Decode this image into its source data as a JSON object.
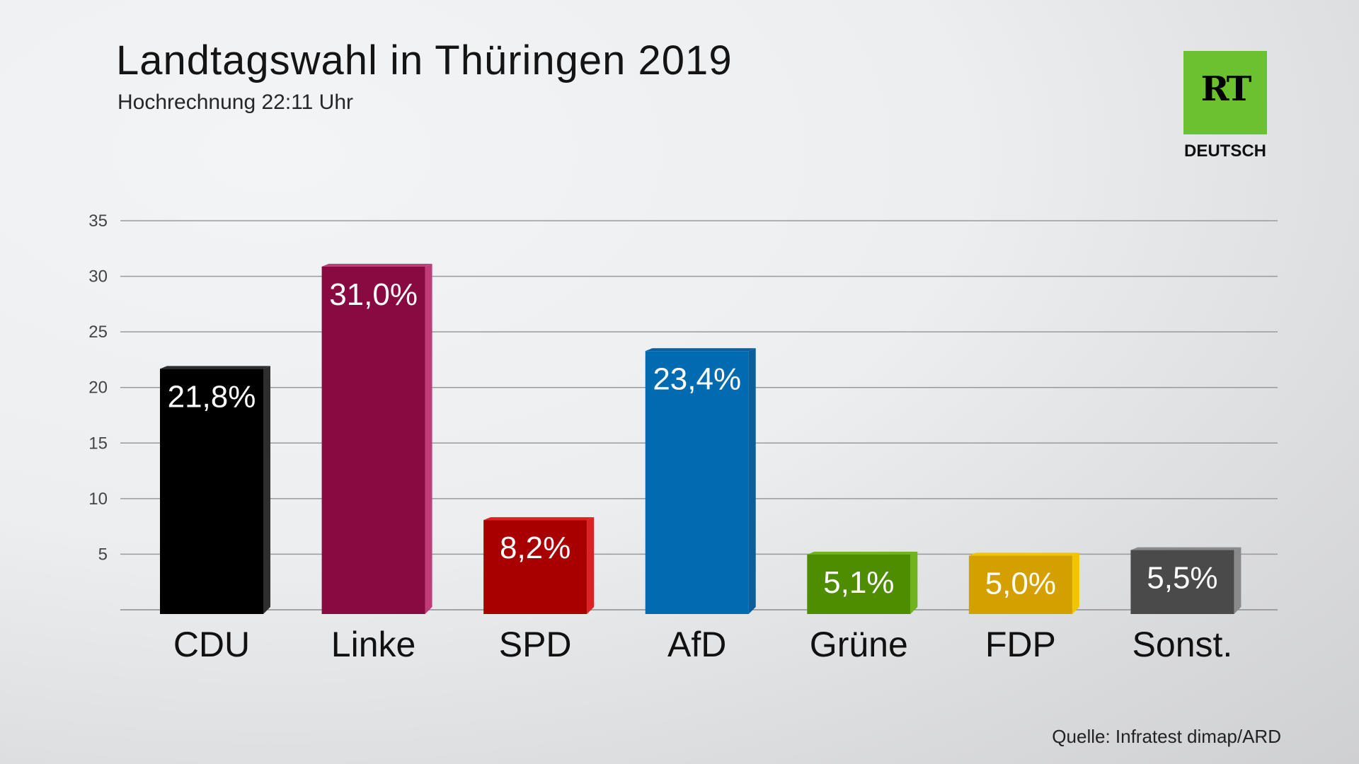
{
  "title": "Landtagswahl in Thüringen 2019",
  "subtitle": "Hochrechnung 22:11 Uhr",
  "logo": {
    "text": "RT",
    "sub": "DEUTSCH",
    "color": "#6cc22e"
  },
  "source": "Quelle: Infratest dimap/ARD",
  "chart_data": {
    "type": "bar",
    "categories": [
      "CDU",
      "Linke",
      "SPD",
      "AfD",
      "Grüne",
      "FDP",
      "Sonst."
    ],
    "values": [
      21.8,
      31.0,
      8.2,
      23.4,
      5.1,
      5.0,
      5.5
    ],
    "data_labels": [
      "21,8%",
      "31,0%",
      "8,2%",
      "23,4%",
      "5,1%",
      "5,0%",
      "5,5%"
    ],
    "colors": [
      "#000000",
      "#880a40",
      "#a80000",
      "#006bb0",
      "#4e8d00",
      "#d4a000",
      "#4a4a4a"
    ],
    "side_colors": [
      "#2e2e2e",
      "#c23a78",
      "#e02020",
      "#0a5e9a",
      "#6fb41e",
      "#f2c400",
      "#8a8a8a"
    ],
    "ylim": [
      0,
      35
    ],
    "yticks": [
      5,
      10,
      15,
      20,
      25,
      30,
      35
    ],
    "grid": true,
    "xlabel": "",
    "ylabel": ""
  }
}
